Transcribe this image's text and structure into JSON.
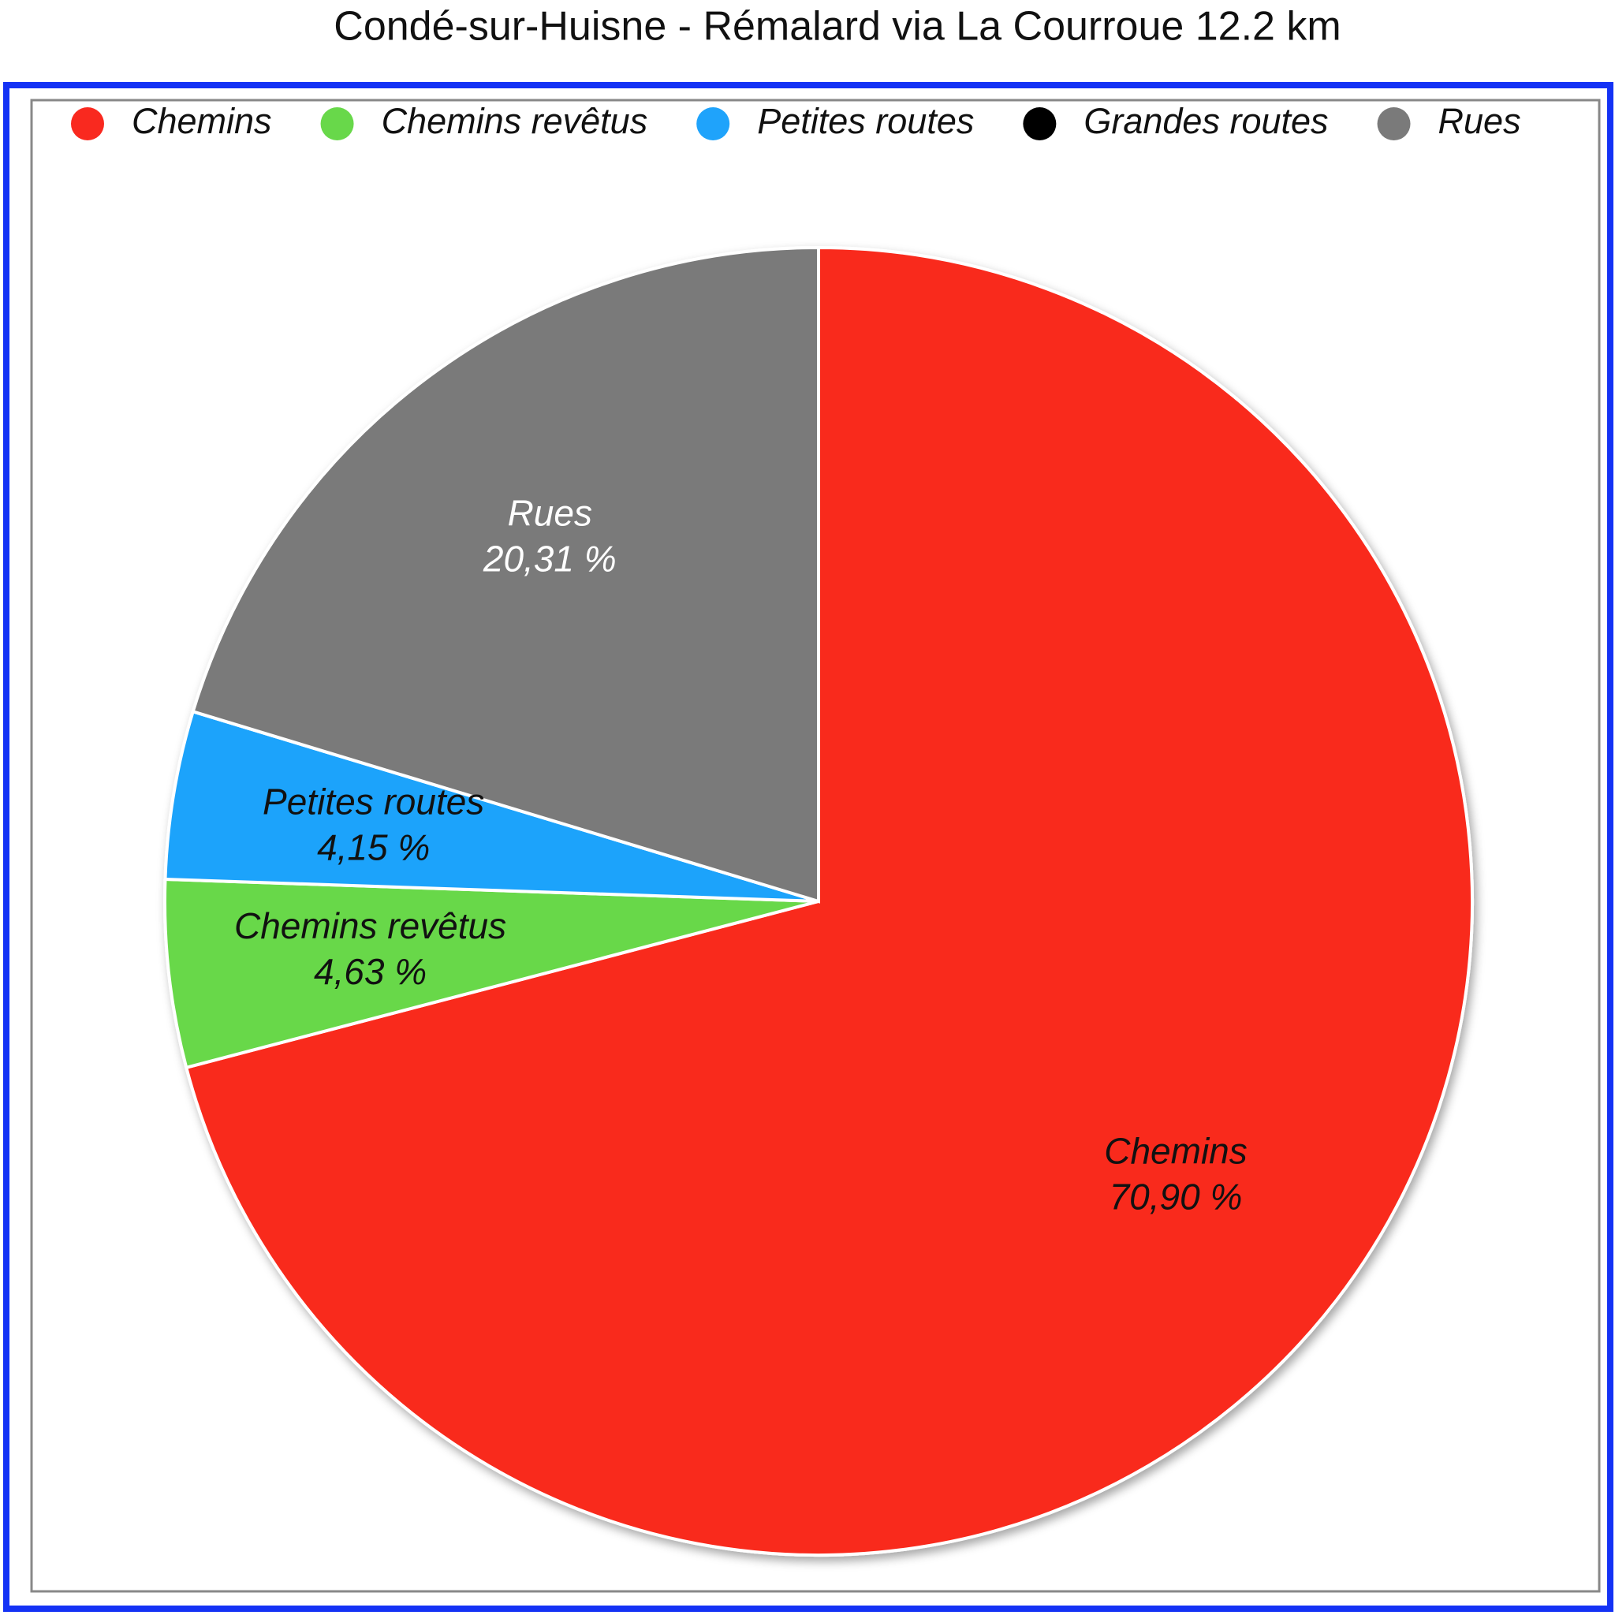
{
  "chart_data": {
    "type": "pie",
    "title": "Condé-sur-Huisne - Rémalard via La Courroue 12.2 km",
    "categories": [
      "Chemins",
      "Chemins revêtus",
      "Petites routes",
      "Grandes routes",
      "Rues"
    ],
    "values": [
      70.9,
      4.63,
      4.15,
      0,
      20.31
    ],
    "value_labels": [
      "70,90 %",
      "4,63 %",
      "4,15 %",
      null,
      "20,31 %"
    ],
    "colors": [
      "#f9291f",
      "#68d84a",
      "#1fa3fb",
      "#000000",
      "#7a7a7a"
    ],
    "label_colors": [
      "#111111",
      "#111111",
      "#111111",
      "#ffffff",
      "#ffffff"
    ],
    "legend": "top"
  }
}
